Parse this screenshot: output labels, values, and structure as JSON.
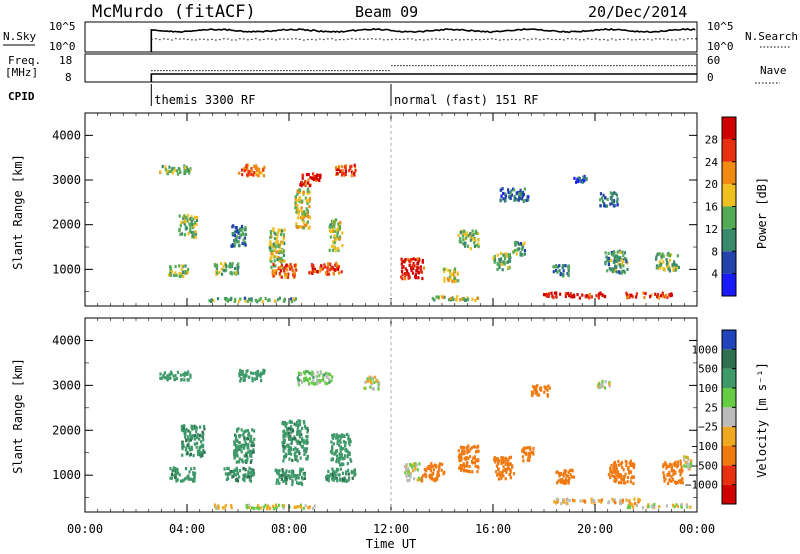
{
  "header": {
    "station": "McMurdo (fitACF)",
    "beam": "Beam 09",
    "date": "20/Dec/2014"
  },
  "noise_panel": {
    "left_label": "N.Sky",
    "left_ticks": [
      "10^5",
      "10^0"
    ],
    "right_ticks": [
      "10^5",
      "10^0"
    ],
    "right_label": "N.Search"
  },
  "freq_panel": {
    "left_label_line1": "Freq.",
    "left_label_line2": "[MHz]",
    "left_ticks": [
      "18",
      "8"
    ],
    "right_ticks": [
      "60",
      "0"
    ],
    "right_label": "Nave"
  },
  "cpid": {
    "label": "CPID",
    "modes": [
      {
        "name": "themis 3300 RF",
        "start_hour": 2.6
      },
      {
        "name": "normal (fast) 151 RF",
        "start_hour": 12.0
      }
    ]
  },
  "x_axis": {
    "label": "Time UT",
    "ticks": [
      "00:00",
      "04:00",
      "08:00",
      "12:00",
      "16:00",
      "20:00",
      "00:00"
    ],
    "range_hours": [
      0,
      24
    ]
  },
  "y_axis": {
    "label": "Slant Range [km]",
    "ticks": [
      "1000",
      "2000",
      "3000",
      "4000"
    ],
    "range_km": [
      180,
      4500
    ]
  },
  "power_scale": {
    "label": "Power [dB]",
    "ticks": [
      "4",
      "8",
      "12",
      "16",
      "20",
      "24",
      "28"
    ],
    "colors": [
      "#1a1aff",
      "#2244aa",
      "#3a8a6e",
      "#55aa55",
      "#f0c020",
      "#f08a10",
      "#e83010",
      "#d00000"
    ]
  },
  "velocity_scale": {
    "label": "Velocity [m s⁻¹]",
    "ticks": [
      "1000",
      "500",
      "100",
      "25",
      "−25",
      "−100",
      "−500",
      "−1000"
    ],
    "colors": [
      "#2244bb",
      "#2f7050",
      "#3f9a6a",
      "#66cc44",
      "#bbbbbb",
      "#f0a820",
      "#f07a10",
      "#e83010",
      "#d00000"
    ]
  },
  "chart_data": {
    "type": "heatmap",
    "x_unit": "hours UT",
    "y_unit": "slant range km",
    "power_blobs": [
      {
        "t": 3.5,
        "r": 3250,
        "dt": 1.2,
        "dr": 200,
        "v": 14
      },
      {
        "t": 6.5,
        "r": 3250,
        "dt": 1.0,
        "dr": 250,
        "v": 22
      },
      {
        "t": 8.8,
        "r": 3050,
        "dt": 0.8,
        "dr": 300,
        "v": 28
      },
      {
        "t": 10.2,
        "r": 3250,
        "dt": 0.8,
        "dr": 250,
        "v": 26
      },
      {
        "t": 4.0,
        "r": 2000,
        "dt": 0.7,
        "dr": 500,
        "v": 14
      },
      {
        "t": 6.0,
        "r": 1800,
        "dt": 0.6,
        "dr": 500,
        "v": 10
      },
      {
        "t": 7.5,
        "r": 1500,
        "dt": 0.6,
        "dr": 900,
        "v": 16
      },
      {
        "t": 8.5,
        "r": 2400,
        "dt": 0.6,
        "dr": 900,
        "v": 18
      },
      {
        "t": 9.8,
        "r": 1800,
        "dt": 0.5,
        "dr": 700,
        "v": 16
      },
      {
        "t": 3.6,
        "r": 1000,
        "dt": 0.8,
        "dr": 250,
        "v": 16
      },
      {
        "t": 5.5,
        "r": 1050,
        "dt": 1.0,
        "dr": 250,
        "v": 14
      },
      {
        "t": 7.8,
        "r": 1000,
        "dt": 1.0,
        "dr": 300,
        "v": 24
      },
      {
        "t": 9.4,
        "r": 1050,
        "dt": 1.3,
        "dr": 250,
        "v": 26
      },
      {
        "t": 12.8,
        "r": 1050,
        "dt": 0.9,
        "dr": 450,
        "v": 28
      },
      {
        "t": 14.3,
        "r": 900,
        "dt": 0.6,
        "dr": 300,
        "v": 18
      },
      {
        "t": 15.0,
        "r": 1700,
        "dt": 0.8,
        "dr": 400,
        "v": 14
      },
      {
        "t": 16.3,
        "r": 1200,
        "dt": 0.7,
        "dr": 400,
        "v": 14
      },
      {
        "t": 17.0,
        "r": 1500,
        "dt": 0.5,
        "dr": 300,
        "v": 12
      },
      {
        "t": 18.6,
        "r": 1000,
        "dt": 0.7,
        "dr": 250,
        "v": 10
      },
      {
        "t": 20.8,
        "r": 1200,
        "dt": 0.9,
        "dr": 500,
        "v": 12
      },
      {
        "t": 22.8,
        "r": 1200,
        "dt": 0.9,
        "dr": 400,
        "v": 14
      },
      {
        "t": 19.2,
        "r": 450,
        "dt": 2.5,
        "dr": 120,
        "v": 28
      },
      {
        "t": 22.0,
        "r": 450,
        "dt": 2.0,
        "dr": 110,
        "v": 26
      },
      {
        "t": 14.5,
        "r": 380,
        "dt": 2.0,
        "dr": 90,
        "v": 16
      },
      {
        "t": 6.5,
        "r": 350,
        "dt": 3.5,
        "dr": 80,
        "v": 12
      },
      {
        "t": 16.8,
        "r": 2700,
        "dt": 1.2,
        "dr": 300,
        "v": 8
      },
      {
        "t": 20.5,
        "r": 2600,
        "dt": 0.7,
        "dr": 300,
        "v": 8
      },
      {
        "t": 19.4,
        "r": 3050,
        "dt": 0.5,
        "dr": 150,
        "v": 6
      }
    ],
    "velocity_blobs": [
      {
        "t": 3.5,
        "r": 3250,
        "dt": 1.2,
        "dr": 200,
        "v": 300
      },
      {
        "t": 6.5,
        "r": 3250,
        "dt": 1.0,
        "dr": 250,
        "v": 200
      },
      {
        "t": 9.0,
        "r": 3200,
        "dt": 1.4,
        "dr": 300,
        "v": 60
      },
      {
        "t": 11.2,
        "r": 3100,
        "dt": 0.6,
        "dr": 300,
        "v": 0
      },
      {
        "t": 4.2,
        "r": 1800,
        "dt": 0.9,
        "dr": 700,
        "v": 450
      },
      {
        "t": 6.2,
        "r": 1700,
        "dt": 0.8,
        "dr": 800,
        "v": 450
      },
      {
        "t": 8.2,
        "r": 1800,
        "dt": 1.0,
        "dr": 900,
        "v": 450
      },
      {
        "t": 10.0,
        "r": 1600,
        "dt": 0.8,
        "dr": 700,
        "v": 300
      },
      {
        "t": 3.8,
        "r": 1050,
        "dt": 1.0,
        "dr": 300,
        "v": 450
      },
      {
        "t": 6.0,
        "r": 1050,
        "dt": 1.2,
        "dr": 300,
        "v": 450
      },
      {
        "t": 8.0,
        "r": 1000,
        "dt": 1.2,
        "dr": 350,
        "v": 450
      },
      {
        "t": 10.0,
        "r": 1050,
        "dt": 1.2,
        "dr": 300,
        "v": 450
      },
      {
        "t": 12.8,
        "r": 1100,
        "dt": 0.6,
        "dr": 400,
        "v": 0
      },
      {
        "t": 13.6,
        "r": 1100,
        "dt": 0.9,
        "dr": 400,
        "v": -300
      },
      {
        "t": 15.0,
        "r": 1400,
        "dt": 0.8,
        "dr": 600,
        "v": -300
      },
      {
        "t": 16.4,
        "r": 1200,
        "dt": 0.8,
        "dr": 500,
        "v": -300
      },
      {
        "t": 17.3,
        "r": 1500,
        "dt": 0.5,
        "dr": 300,
        "v": -300
      },
      {
        "t": 18.8,
        "r": 1000,
        "dt": 0.7,
        "dr": 300,
        "v": -300
      },
      {
        "t": 21.0,
        "r": 1100,
        "dt": 1.0,
        "dr": 500,
        "v": -300
      },
      {
        "t": 23.0,
        "r": 1100,
        "dt": 0.8,
        "dr": 500,
        "v": -300
      },
      {
        "t": 23.6,
        "r": 1300,
        "dt": 0.3,
        "dr": 300,
        "v": 0
      },
      {
        "t": 20.0,
        "r": 450,
        "dt": 3.5,
        "dr": 100,
        "v": -60
      },
      {
        "t": 22.5,
        "r": 350,
        "dt": 2.5,
        "dr": 80,
        "v": 0
      },
      {
        "t": 7.0,
        "r": 330,
        "dt": 4.0,
        "dr": 80,
        "v": 0
      },
      {
        "t": 20.3,
        "r": 3050,
        "dt": 0.5,
        "dr": 150,
        "v": 0
      },
      {
        "t": 17.8,
        "r": 2900,
        "dt": 0.8,
        "dr": 250,
        "v": -300
      }
    ]
  }
}
